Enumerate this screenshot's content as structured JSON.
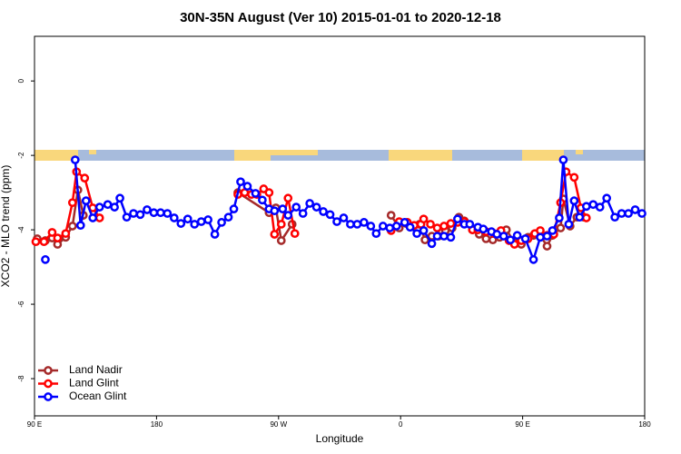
{
  "chart_data": {
    "type": "line",
    "title": "30N-35N August (Ver 10)   2015-01-01 to 2020-12-18",
    "xlabel": "Longitude",
    "ylabel": "XCO2 - MLO trend (ppm)",
    "xlim": [
      90,
      540
    ],
    "ylim": [
      -9,
      1.2
    ],
    "xticks": [
      {
        "value": 90,
        "label": "90 E"
      },
      {
        "value": 180,
        "label": "180"
      },
      {
        "value": 270,
        "label": "90 W"
      },
      {
        "value": 360,
        "label": "0"
      },
      {
        "value": 450,
        "label": "90 E"
      },
      {
        "value": 540,
        "label": "180"
      }
    ],
    "yticks": [
      0,
      -2,
      -4,
      -6,
      -8
    ],
    "legend": "bottomleft",
    "series": [
      {
        "name": "Land Nadir",
        "color": "#a52a2a",
        "x": [
          92,
          98,
          103,
          107,
          113,
          118,
          122,
          126,
          null,
          240,
          263,
          268,
          272,
          280,
          null,
          353,
          359,
          364,
          369,
          374,
          378,
          383,
          388,
          393,
          398,
          403,
          407,
          413,
          418,
          423,
          428,
          433,
          438,
          444,
          449,
          454,
          458,
          463,
          468,
          472,
          478,
          480,
          485,
          490,
          495
        ],
        "values": [
          -4.24,
          -4.29,
          -4.22,
          -4.39,
          -4.2,
          -3.9,
          -2.93,
          -3.61,
          null,
          -3.0,
          -3.54,
          -3.41,
          -4.29,
          -3.85,
          null,
          -3.61,
          -3.95,
          -3.83,
          -3.9,
          -3.85,
          -4.27,
          -4.17,
          -4.17,
          -4.02,
          -3.95,
          -3.66,
          -3.76,
          -4.0,
          -4.12,
          -4.24,
          -4.27,
          -4.2,
          -4.0,
          -4.34,
          -4.39,
          -4.2,
          -4.15,
          -4.15,
          -4.44,
          -4.15,
          -3.95,
          -3.17,
          -3.9,
          -3.66,
          -3.66
        ]
      },
      {
        "name": "Land Glint",
        "color": "#ff0000",
        "x": [
          91,
          97,
          103,
          107,
          113,
          118,
          121,
          127,
          133,
          138,
          null,
          240,
          245,
          250,
          254,
          259,
          263,
          267,
          272,
          277,
          282,
          null,
          353,
          359,
          365,
          370,
          375,
          377,
          382,
          387,
          392,
          397,
          402,
          407,
          413,
          417,
          423,
          429,
          434,
          440,
          444,
          449,
          454,
          459,
          463,
          468,
          473,
          478,
          482,
          488,
          493,
          497
        ],
        "values": [
          -4.32,
          -4.32,
          -4.07,
          -4.22,
          -4.1,
          -3.27,
          -2.44,
          -2.61,
          -3.41,
          -3.68,
          null,
          -3.05,
          -3.0,
          -3.05,
          -3.05,
          -2.9,
          -3.0,
          -4.12,
          -3.85,
          -3.15,
          -4.1,
          null,
          -4.02,
          -3.78,
          -3.8,
          -3.88,
          -3.85,
          -3.71,
          -3.85,
          -3.95,
          -3.9,
          -3.83,
          -3.8,
          -3.78,
          -4.0,
          -4.0,
          -4.05,
          -4.1,
          -4.02,
          -4.29,
          -4.39,
          -4.29,
          -4.24,
          -4.1,
          -4.02,
          -4.15,
          -4.12,
          -3.27,
          -2.44,
          -2.59,
          -3.41,
          -3.68
        ]
      },
      {
        "name": "Ocean Glint",
        "color": "#0000ff",
        "x": [
          98,
          null,
          120,
          124,
          128,
          133,
          138,
          144,
          149,
          153,
          158,
          163,
          168,
          173,
          178,
          183,
          188,
          193,
          198,
          203,
          208,
          213,
          218,
          223,
          228,
          233,
          237,
          242,
          247,
          253,
          258,
          263,
          267,
          273,
          277,
          283,
          288,
          293,
          298,
          303,
          308,
          313,
          318,
          323,
          328,
          333,
          338,
          342,
          347,
          352,
          357,
          363,
          367,
          372,
          377,
          383,
          387,
          392,
          397,
          402,
          407,
          411,
          417,
          421,
          427,
          431,
          436,
          441,
          446,
          452,
          458,
          463,
          468,
          472,
          477,
          480,
          484,
          488,
          492,
          497,
          502,
          507,
          512,
          518,
          523,
          528,
          533,
          538
        ],
        "values": [
          -4.8,
          null,
          -2.12,
          -3.88,
          -3.22,
          -3.68,
          -3.39,
          -3.32,
          -3.39,
          -3.15,
          -3.66,
          -3.56,
          -3.59,
          -3.46,
          -3.54,
          -3.54,
          -3.56,
          -3.68,
          -3.83,
          -3.71,
          -3.85,
          -3.78,
          -3.73,
          -4.12,
          -3.8,
          -3.66,
          -3.44,
          -2.71,
          -2.83,
          -3.02,
          -3.2,
          -3.44,
          -3.49,
          -3.44,
          -3.61,
          -3.39,
          -3.56,
          -3.29,
          -3.39,
          -3.51,
          -3.59,
          -3.78,
          -3.68,
          -3.85,
          -3.85,
          -3.8,
          -3.9,
          -4.1,
          -3.9,
          -3.95,
          -3.9,
          -3.8,
          -3.93,
          -4.1,
          -4.02,
          -4.37,
          -4.17,
          -4.17,
          -4.2,
          -3.71,
          -3.85,
          -3.85,
          -3.93,
          -3.98,
          -4.05,
          -4.12,
          -4.17,
          -4.27,
          -4.15,
          -4.24,
          -4.8,
          -4.2,
          -4.17,
          -4.02,
          -3.68,
          -2.12,
          -3.85,
          -3.22,
          -3.66,
          -3.37,
          -3.32,
          -3.39,
          -3.15,
          -3.66,
          -3.56,
          -3.56,
          -3.46,
          -3.56
        ]
      }
    ]
  }
}
